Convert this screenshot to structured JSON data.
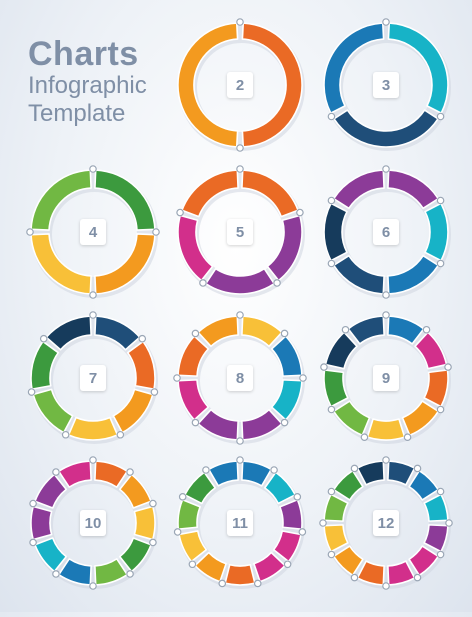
{
  "title": {
    "line1": "Charts",
    "line2": "Infographic",
    "line3": "Template"
  },
  "palette": {
    "orange": "#f39a1f",
    "orange_dark": "#ea6a25",
    "red_orange": "#e8542b",
    "blue": "#1b79b6",
    "teal": "#17b3c7",
    "navy": "#1f4e79",
    "dark_navy": "#163b5c",
    "green": "#71b843",
    "dark_green": "#3c9a3e",
    "yellow": "#f8c038",
    "magenta": "#d22f8b",
    "purple": "#8c3b98",
    "shadow": "#cfd6e0",
    "dot_fill": "#ffffff",
    "dot_stroke": "#9aa6b5"
  },
  "charts": [
    {
      "label": "2",
      "colors": [
        "orange_dark",
        "orange"
      ]
    },
    {
      "label": "3",
      "colors": [
        "teal",
        "navy",
        "blue"
      ]
    },
    {
      "label": "4",
      "colors": [
        "dark_green",
        "orange",
        "yellow",
        "green"
      ]
    },
    {
      "label": "5",
      "colors": [
        "orange_dark",
        "purple",
        "purple",
        "magenta",
        "orange_dark"
      ]
    },
    {
      "label": "6",
      "colors": [
        "purple",
        "teal",
        "blue",
        "navy",
        "dark_navy",
        "purple"
      ]
    },
    {
      "label": "7",
      "colors": [
        "navy",
        "orange_dark",
        "orange",
        "yellow",
        "green",
        "dark_green",
        "dark_navy"
      ]
    },
    {
      "label": "8",
      "colors": [
        "yellow",
        "blue",
        "teal",
        "purple",
        "purple",
        "magenta",
        "orange_dark",
        "orange"
      ]
    },
    {
      "label": "9",
      "colors": [
        "blue",
        "magenta",
        "orange_dark",
        "orange",
        "yellow",
        "green",
        "dark_green",
        "dark_navy",
        "navy"
      ]
    },
    {
      "label": "10",
      "colors": [
        "orange_dark",
        "orange",
        "yellow",
        "dark_green",
        "green",
        "blue",
        "teal",
        "purple",
        "purple",
        "magenta"
      ]
    },
    {
      "label": "11",
      "colors": [
        "blue",
        "teal",
        "purple",
        "magenta",
        "magenta",
        "orange_dark",
        "orange",
        "yellow",
        "green",
        "dark_green",
        "blue"
      ]
    },
    {
      "label": "12",
      "colors": [
        "navy",
        "blue",
        "teal",
        "purple",
        "magenta",
        "magenta",
        "orange_dark",
        "orange",
        "yellow",
        "green",
        "dark_green",
        "dark_navy"
      ]
    }
  ]
}
